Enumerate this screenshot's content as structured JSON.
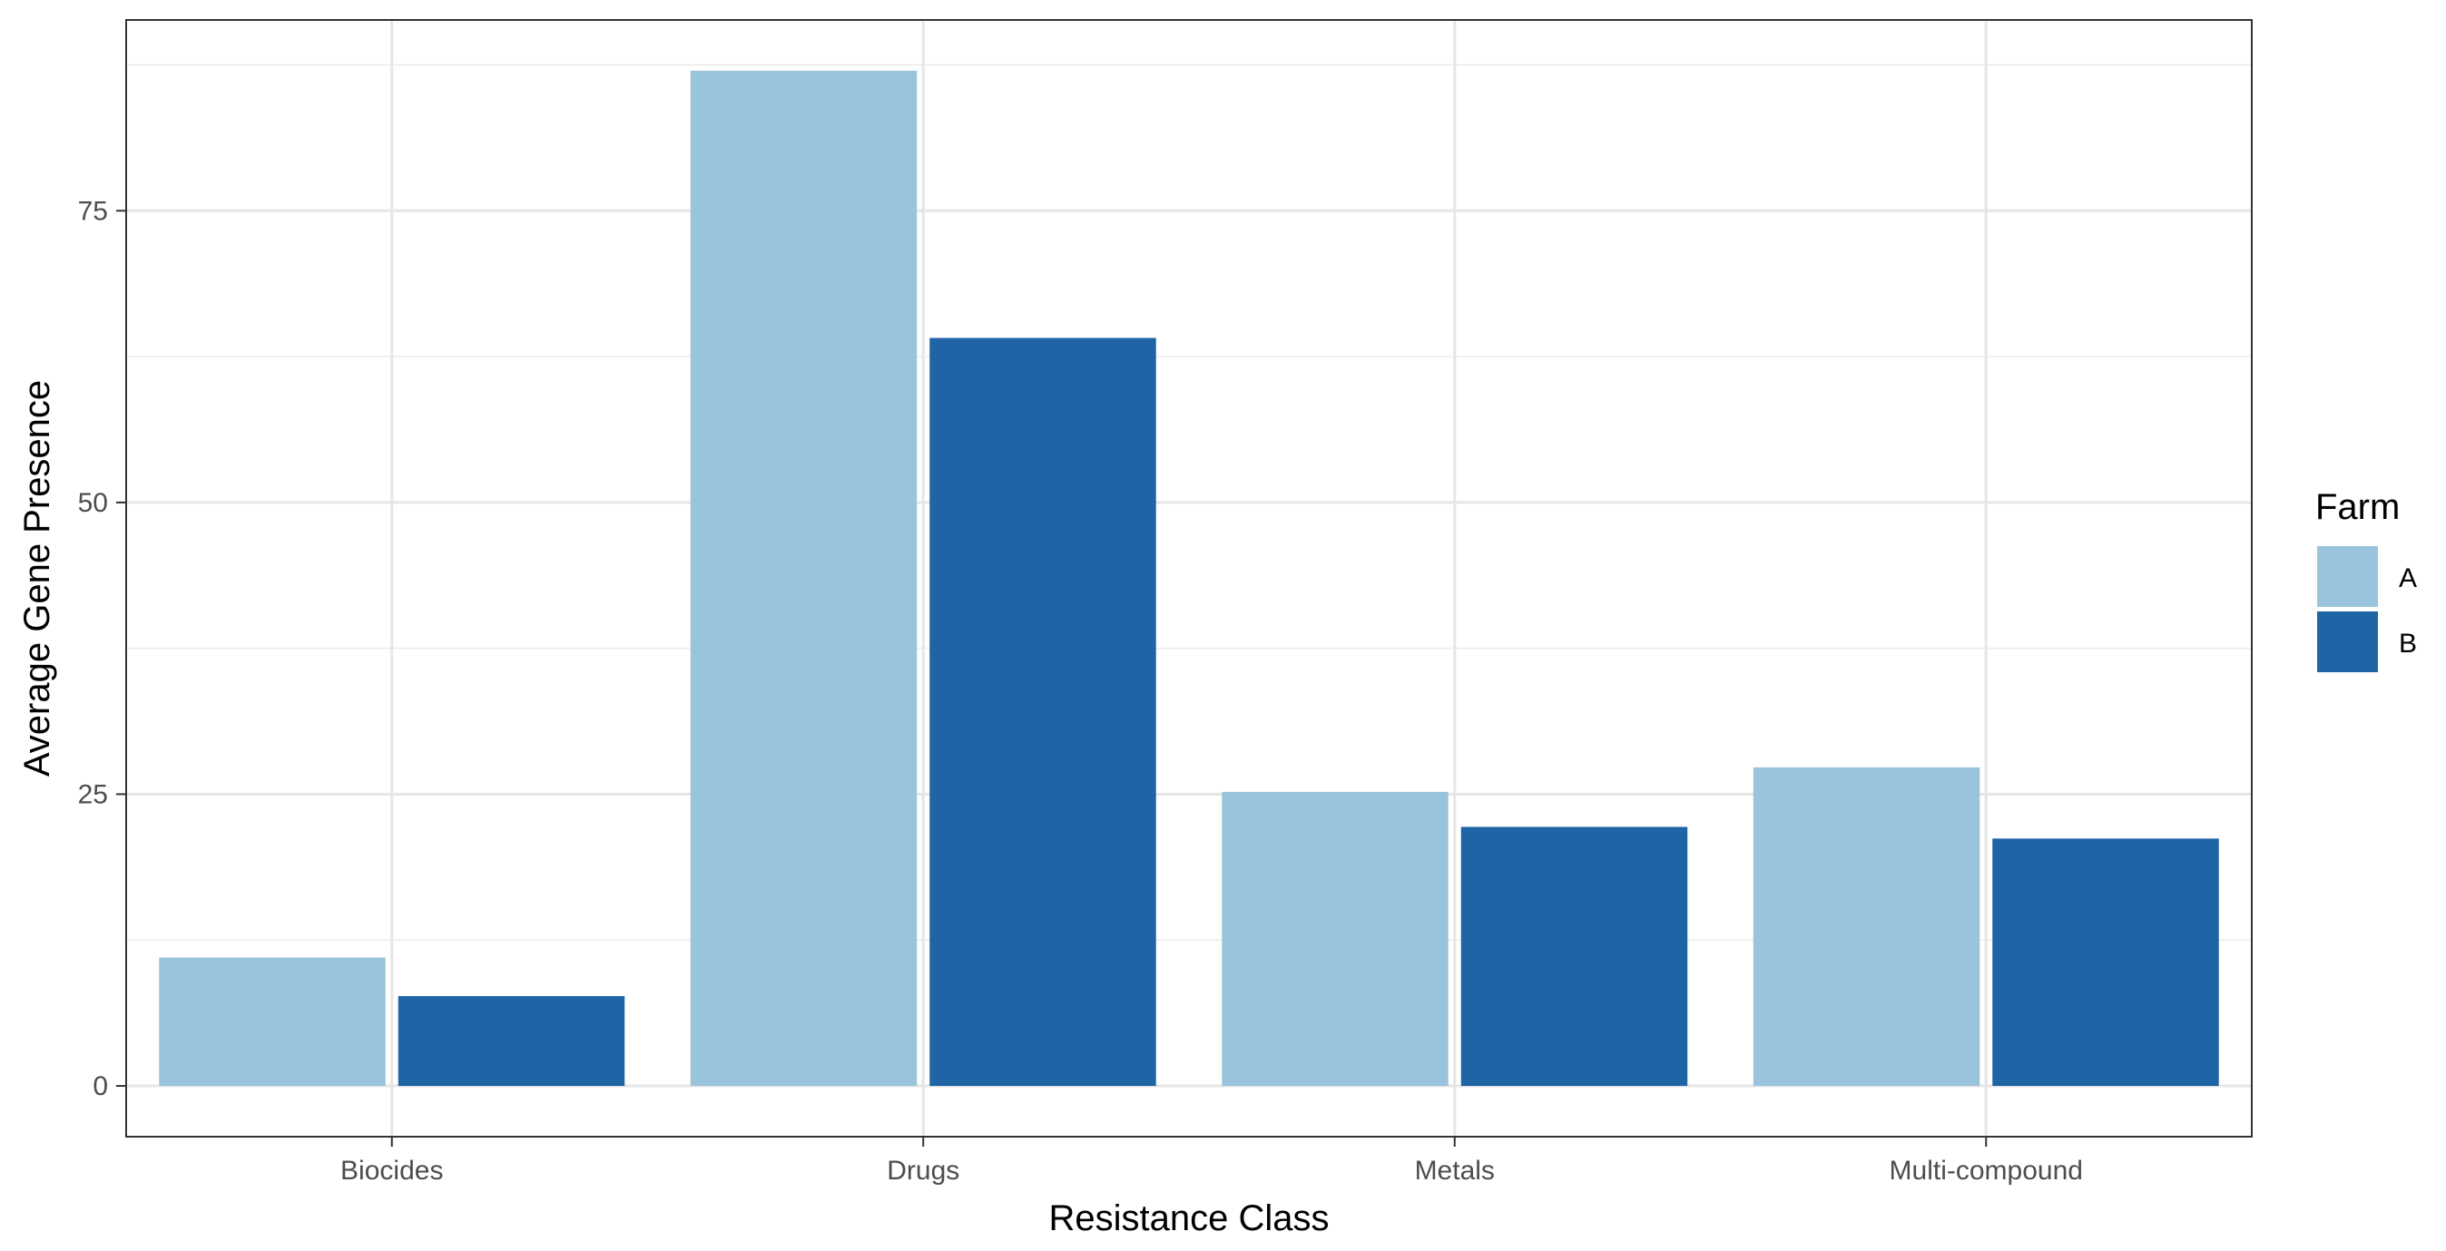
{
  "chart_data": {
    "type": "bar",
    "title": "",
    "xlabel": "Resistance Class",
    "ylabel": "Average Gene Presence",
    "categories": [
      "Biocides",
      "Drugs",
      "Metals",
      "Multi-compound"
    ],
    "series": [
      {
        "name": "A",
        "values": [
          11,
          87,
          25.2,
          27.3
        ],
        "color": "#9ac4dc"
      },
      {
        "name": "B",
        "values": [
          7.7,
          64.1,
          22.2,
          21.2
        ],
        "color": "#1f64a5"
      }
    ],
    "ylim": [
      -4.35,
      91.35
    ],
    "yticks": [
      0,
      25,
      50,
      75
    ],
    "yticks_minor": [
      12.5,
      37.5,
      62.5,
      87.5
    ],
    "grid": true,
    "legend": {
      "title": "Farm",
      "placement": "right"
    }
  }
}
